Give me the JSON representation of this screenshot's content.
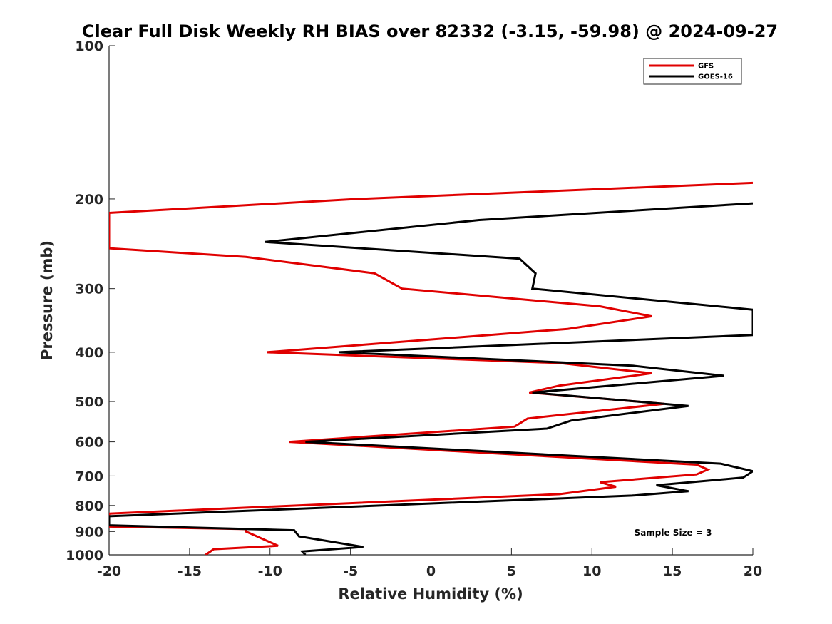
{
  "chart_data": {
    "type": "line",
    "title": "Clear Full Disk Weekly RH BIAS over 82332 (-3.15, -59.98) @ 2024-09-27",
    "xlabel": "Relative Humidity (%)",
    "ylabel": "Pressure (mb)",
    "xlim": [
      -20,
      20
    ],
    "ylim": [
      1000,
      100
    ],
    "yscale": "log",
    "x_ticks": [
      -20,
      -15,
      -10,
      -5,
      0,
      5,
      10,
      15,
      20
    ],
    "y_ticks": [
      100,
      200,
      300,
      400,
      500,
      600,
      700,
      800,
      900,
      1000
    ],
    "grid": false,
    "legend_position": "top-right",
    "annotation": "Sample Size = 3",
    "series": [
      {
        "name": "GFS",
        "color": "#e00000",
        "points": [
          [
            20,
            186
          ],
          [
            -4.5,
            200
          ],
          [
            -20,
            213
          ],
          [
            -20,
            250
          ],
          [
            -11.5,
            260
          ],
          [
            -3.5,
            280
          ],
          [
            -1.8,
            300
          ],
          [
            10.5,
            325
          ],
          [
            13.7,
            340
          ],
          [
            8.5,
            360
          ],
          [
            -10.2,
            400
          ],
          [
            8,
            420
          ],
          [
            13.7,
            440
          ],
          [
            8,
            465
          ],
          [
            6.1,
            480
          ],
          [
            14.5,
            505
          ],
          [
            6,
            540
          ],
          [
            5.2,
            560
          ],
          [
            -8.8,
            600
          ],
          [
            16.5,
            665
          ],
          [
            17.2,
            680
          ],
          [
            16.5,
            695
          ],
          [
            10.5,
            720
          ],
          [
            11.5,
            735
          ],
          [
            8,
            760
          ],
          [
            -20,
            830
          ],
          [
            -20,
            880
          ],
          [
            -11.5,
            890
          ],
          [
            -11.5,
            900
          ],
          [
            -9.5,
            960
          ],
          [
            -13.5,
            975
          ],
          [
            -14,
            1000
          ]
        ]
      },
      {
        "name": "GOES-16",
        "color": "#000000",
        "points": [
          [
            20,
            204
          ],
          [
            3,
            220
          ],
          [
            -10.3,
            243
          ],
          [
            5.5,
            262
          ],
          [
            6.5,
            280
          ],
          [
            6.3,
            300
          ],
          [
            20,
            330
          ],
          [
            20,
            370
          ],
          [
            -5.7,
            400
          ],
          [
            12.5,
            425
          ],
          [
            18.2,
            445
          ],
          [
            6.3,
            480
          ],
          [
            16,
            510
          ],
          [
            8.7,
            545
          ],
          [
            7.2,
            565
          ],
          [
            -7.8,
            600
          ],
          [
            18,
            662
          ],
          [
            20,
            685
          ],
          [
            19.4,
            705
          ],
          [
            14,
            730
          ],
          [
            16,
            750
          ],
          [
            12.5,
            765
          ],
          [
            -20,
            840
          ],
          [
            -20,
            875
          ],
          [
            -8.5,
            895
          ],
          [
            -8.2,
            920
          ],
          [
            -4.2,
            965
          ],
          [
            -8,
            985
          ],
          [
            -7.8,
            1000
          ]
        ]
      }
    ]
  }
}
